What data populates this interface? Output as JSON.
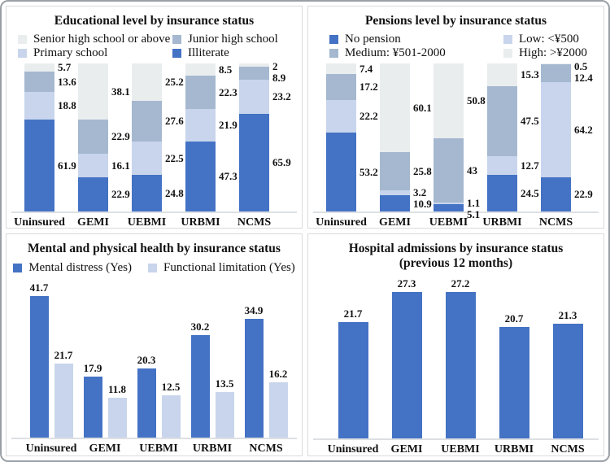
{
  "chart_data": [
    {
      "id": "education",
      "type": "stacked-bar",
      "title": "Educational level by insurance status",
      "categories": [
        "Uninsured",
        "GEMI",
        "UEBMI",
        "URBMI",
        "NCMS"
      ],
      "stack_total": 100,
      "ylim": [
        0,
        100
      ],
      "legend_position": "top",
      "grid": false,
      "legend": [
        {
          "label": "Senior high school or above",
          "color": "#e9edee",
          "pattern": "dots"
        },
        {
          "label": "Junior high school",
          "color": "#a5b8d0",
          "pattern": "none"
        },
        {
          "label": "Primary school",
          "color": "#c8d5ec",
          "pattern": "none"
        },
        {
          "label": "Illiterate",
          "color": "#4472c4",
          "pattern": "none"
        }
      ],
      "series": [
        {
          "name": "Illiterate",
          "color": "#4472c4",
          "pattern": "none",
          "values": [
            61.9,
            22.9,
            24.8,
            47.3,
            65.9
          ]
        },
        {
          "name": "Primary school",
          "color": "#c8d5ec",
          "pattern": "none",
          "values": [
            18.8,
            16.1,
            22.5,
            21.9,
            23.2
          ]
        },
        {
          "name": "Junior high school",
          "color": "#a5b8d0",
          "pattern": "none",
          "values": [
            13.6,
            22.9,
            27.6,
            22.3,
            8.9
          ]
        },
        {
          "name": "Senior high school or above",
          "color": "#e9edee",
          "pattern": "dots",
          "values": [
            5.7,
            38.1,
            25.2,
            8.5,
            2
          ]
        }
      ]
    },
    {
      "id": "pensions",
      "type": "stacked-bar",
      "title": "Pensions level by insurance status",
      "categories": [
        "Uninsured",
        "GEMI",
        "UEBMI",
        "URBMI",
        "NCMS"
      ],
      "stack_total": 100,
      "ylim": [
        0,
        100
      ],
      "legend_position": "top",
      "grid": false,
      "legend": [
        {
          "label": "No pension",
          "color": "#4472c4",
          "pattern": "none"
        },
        {
          "label": "Low: <¥500",
          "color": "#c8d5ec",
          "pattern": "none"
        },
        {
          "label": "Medium: ¥501-2000",
          "color": "#a5b8d0",
          "pattern": "none"
        },
        {
          "label": "High: >¥2000",
          "color": "#e9edee",
          "pattern": "dots"
        }
      ],
      "series": [
        {
          "name": "No pension",
          "color": "#4472c4",
          "pattern": "none",
          "values": [
            53.2,
            10.9,
            5.1,
            24.5,
            22.9
          ]
        },
        {
          "name": "Low: <¥500",
          "color": "#c8d5ec",
          "pattern": "none",
          "values": [
            22.2,
            3.2,
            1.1,
            12.7,
            64.2
          ]
        },
        {
          "name": "Medium: ¥501-2000",
          "color": "#a5b8d0",
          "pattern": "none",
          "values": [
            17.2,
            25.8,
            43,
            47.5,
            12.4
          ]
        },
        {
          "name": "High: >¥2000",
          "color": "#e9edee",
          "pattern": "dots",
          "values": [
            7.4,
            60.1,
            50.8,
            15.3,
            0.5
          ]
        }
      ]
    },
    {
      "id": "health",
      "type": "grouped-bar",
      "title": "Mental and physical health by insurance status",
      "categories": [
        "Uninsured",
        "GEMI",
        "UEBMI",
        "URBMI",
        "NCMS"
      ],
      "ylim": [
        0,
        45
      ],
      "legend_position": "top",
      "grid": false,
      "legend": [
        {
          "label": "Mental distress (Yes)",
          "color": "#4472c4",
          "pattern": "none"
        },
        {
          "label": "Functional limitation (Yes)",
          "color": "#c8d5ec",
          "pattern": "none"
        }
      ],
      "series": [
        {
          "name": "Mental distress (Yes)",
          "color": "#4472c4",
          "pattern": "none",
          "values": [
            41.7,
            17.9,
            20.3,
            30.2,
            34.9
          ]
        },
        {
          "name": "Functional limitation (Yes)",
          "color": "#c8d5ec",
          "pattern": "none",
          "values": [
            21.7,
            11.8,
            12.5,
            13.5,
            16.2
          ]
        }
      ]
    },
    {
      "id": "hospital",
      "type": "bar",
      "title": "Hospital admissions by insurance status",
      "subtitle": "(previous 12 months)",
      "categories": [
        "Uninsured",
        "GEMI",
        "UEBMI",
        "URBMI",
        "NCMS"
      ],
      "ylim": [
        0,
        30
      ],
      "grid": false,
      "legend": [],
      "series": [
        {
          "name": "Hospital admissions",
          "color": "#4472c4",
          "pattern": "none",
          "values": [
            21.7,
            27.3,
            27.2,
            20.7,
            21.3
          ]
        }
      ]
    }
  ]
}
